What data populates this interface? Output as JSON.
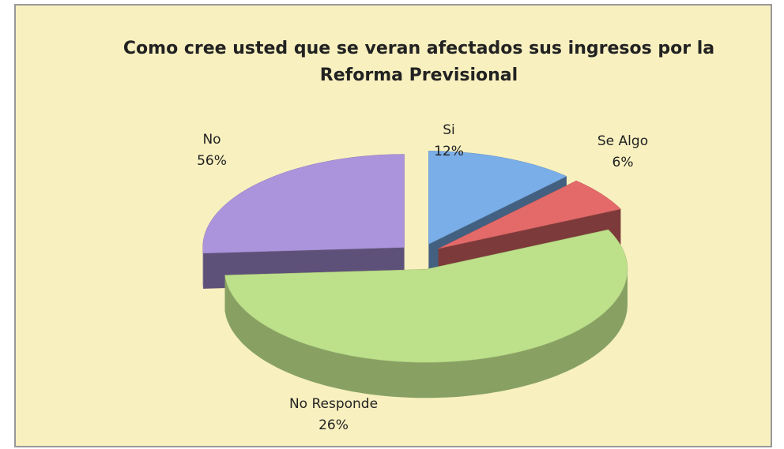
{
  "chart_data": {
    "type": "pie3d",
    "title": "Como cree usted que se veran afectados sus ingresos por la Reforma Previsional",
    "categories": [
      "Si",
      "Se Algo",
      "No",
      "No Responde"
    ],
    "values": [
      12,
      6,
      56,
      26
    ],
    "value_labels": [
      "12%",
      "6%",
      "56%",
      "26%"
    ],
    "colors": [
      "#79aee8",
      "#e46a6a",
      "#bde08a",
      "#ab94dc"
    ]
  }
}
